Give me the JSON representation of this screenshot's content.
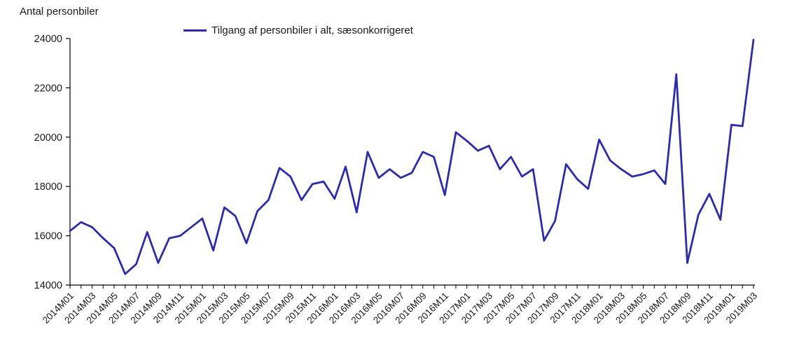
{
  "header": {
    "axis_unit_label": "Antal personbiler"
  },
  "legend": {
    "label": "Tilgang af personbiler i alt, sæsonkorrigeret"
  },
  "colors": {
    "series": "#2e2ba8",
    "axis": "#000000",
    "text": "#1a1a1a",
    "background": "#ffffff"
  },
  "chart_data": {
    "type": "line",
    "title": "Antal personbiler",
    "xlabel": "",
    "ylabel": "Antal personbiler",
    "legend_entries": [
      "Tilgang af personbiler i alt, sæsonkorrigeret"
    ],
    "legend_position": "top",
    "grid": false,
    "ylim": [
      14000,
      24000
    ],
    "y_ticks": [
      14000,
      16000,
      18000,
      20000,
      22000,
      24000
    ],
    "x_label_every": 2,
    "categories": [
      "2014M01",
      "2014M02",
      "2014M03",
      "2014M04",
      "2014M05",
      "2014M06",
      "2014M07",
      "2014M08",
      "2014M09",
      "2014M10",
      "2014M11",
      "2014M12",
      "2015M01",
      "2015M02",
      "2015M03",
      "2015M04",
      "2015M05",
      "2015M06",
      "2015M07",
      "2015M08",
      "2015M09",
      "2015M10",
      "2015M11",
      "2015M12",
      "2016M01",
      "2016M02",
      "2016M03",
      "2016M04",
      "2016M05",
      "2016M06",
      "2016M07",
      "2016M08",
      "2016M09",
      "2016M10",
      "2016M11",
      "2016M12",
      "2017M01",
      "2017M02",
      "2017M03",
      "2017M04",
      "2017M05",
      "2017M06",
      "2017M07",
      "2017M08",
      "2017M09",
      "2017M10",
      "2017M11",
      "2017M12",
      "2018M01",
      "2018M02",
      "2018M03",
      "2018M04",
      "2018M05",
      "2018M06",
      "2018M07",
      "2018M08",
      "2018M09",
      "2018M10",
      "2018M11",
      "2018M12",
      "2019M01",
      "2019M02",
      "2019M03"
    ],
    "series": [
      {
        "name": "Tilgang af personbiler i alt, sæsonkorrigeret",
        "values": [
          16200,
          16550,
          16350,
          15900,
          15500,
          14450,
          14850,
          16150,
          14900,
          15900,
          16000,
          16350,
          16700,
          15400,
          17150,
          16800,
          15700,
          17000,
          17450,
          18750,
          18400,
          17450,
          18100,
          18200,
          17500,
          18800,
          16950,
          19400,
          18350,
          18700,
          18350,
          18550,
          19400,
          19200,
          17650,
          20200,
          19850,
          19450,
          19650,
          18700,
          19200,
          18400,
          18700,
          15800,
          16600,
          18900,
          18300,
          17900,
          19900,
          19050,
          18700,
          18400,
          18500,
          18650,
          18100,
          22550,
          14900,
          16850,
          17700,
          16650,
          20500,
          20450,
          23950
        ]
      }
    ]
  }
}
